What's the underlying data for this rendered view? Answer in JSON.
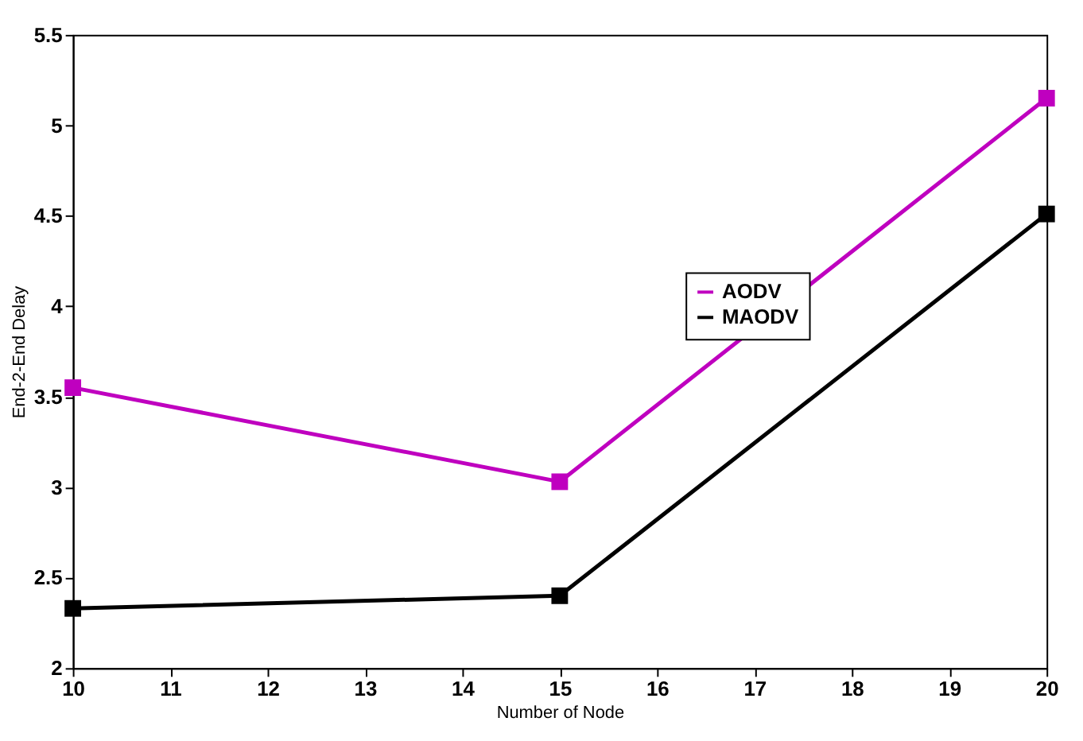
{
  "chart_data": {
    "type": "line",
    "xlabel": "Number of Node",
    "ylabel": "End-2-End Delay",
    "x": [
      10,
      15,
      20
    ],
    "series": [
      {
        "name": "AODV",
        "color": "#bf00bf",
        "values": [
          3.55,
          3.03,
          5.15
        ]
      },
      {
        "name": "MAODV",
        "color": "#000000",
        "values": [
          2.33,
          2.4,
          4.51
        ]
      }
    ],
    "xlim": [
      10,
      20
    ],
    "xticks": [
      10,
      11,
      12,
      13,
      14,
      15,
      16,
      17,
      18,
      19,
      20
    ],
    "ylim": [
      2,
      5.5
    ],
    "yticks": [
      2,
      2.5,
      3,
      3.5,
      4,
      4.5,
      5,
      5.5
    ],
    "grid": false,
    "legend": "top right",
    "marker": "square",
    "line_style": "solid"
  }
}
